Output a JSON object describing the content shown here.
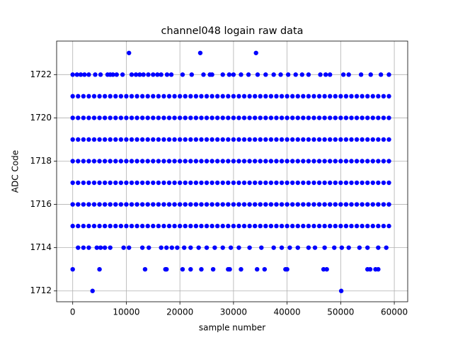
{
  "chart_data": {
    "type": "scatter",
    "title": "channel048 logain raw data",
    "xlabel": "sample number",
    "ylabel": "ADC Code",
    "xlim": [
      -3000,
      62500
    ],
    "ylim": [
      1711.5,
      1723.55
    ],
    "xticks": [
      0,
      10000,
      20000,
      30000,
      40000,
      50000,
      60000
    ],
    "yticks": [
      1712,
      1714,
      1716,
      1718,
      1720,
      1722
    ],
    "grid": true,
    "series": [
      {
        "color": "#0000ff",
        "x": [
          10500,
          23800,
          34200
        ],
        "values": [
          1723,
          1723,
          1723
        ]
      },
      {
        "color": "#0000ff",
        "x": [
          0,
          800,
          1500,
          2200,
          3000,
          4200,
          5200,
          6500,
          7000,
          7500,
          8200,
          9300,
          11000,
          11800,
          12500,
          13200,
          14100,
          15000,
          15800,
          16500,
          17600,
          18400,
          20500,
          22200,
          24400,
          25600,
          26000,
          28000,
          29200,
          30000,
          31400,
          32800,
          34500,
          36000,
          37500,
          38800,
          40200,
          41600,
          42800,
          44000,
          46200,
          47200,
          48000,
          50500,
          51500,
          53800,
          55600,
          57500,
          59000
        ],
        "values": [
          1722,
          1722,
          1722,
          1722,
          1722,
          1722,
          1722,
          1722,
          1722,
          1722,
          1722,
          1722,
          1722,
          1722,
          1722,
          1722,
          1722,
          1722,
          1722,
          1722,
          1722,
          1722,
          1722,
          1722,
          1722,
          1722,
          1722,
          1722,
          1722,
          1722,
          1722,
          1722,
          1722,
          1722,
          1722,
          1722,
          1722,
          1722,
          1722,
          1722,
          1722,
          1722,
          1722,
          1722,
          1722,
          1722,
          1722,
          1722,
          1722
        ]
      },
      {
        "color": "#0000ff",
        "x": [
          0,
          1000,
          2000,
          3000,
          4000,
          5000,
          6000,
          7000,
          8000,
          9000,
          10000,
          11000,
          12000,
          13000,
          14000,
          15000,
          16000,
          17000,
          18000,
          19000,
          20000,
          21000,
          22000,
          23000,
          24000,
          25000,
          26000,
          27000,
          28000,
          29000,
          30000,
          31000,
          32000,
          33000,
          34000,
          35000,
          36000,
          37000,
          38000,
          39000,
          40000,
          41000,
          42000,
          43000,
          44000,
          45000,
          46000,
          47000,
          48000,
          49000,
          50000,
          51000,
          52000,
          53000,
          54000,
          55000,
          56000,
          57000,
          58000,
          59000
        ],
        "values": [
          1721,
          1721,
          1721,
          1721,
          1721,
          1721,
          1721,
          1721,
          1721,
          1721,
          1721,
          1721,
          1721,
          1721,
          1721,
          1721,
          1721,
          1721,
          1721,
          1721,
          1721,
          1721,
          1721,
          1721,
          1721,
          1721,
          1721,
          1721,
          1721,
          1721,
          1721,
          1721,
          1721,
          1721,
          1721,
          1721,
          1721,
          1721,
          1721,
          1721,
          1721,
          1721,
          1721,
          1721,
          1721,
          1721,
          1721,
          1721,
          1721,
          1721,
          1721,
          1721,
          1721,
          1721,
          1721,
          1721,
          1721,
          1721,
          1721,
          1721
        ]
      },
      {
        "color": "#0000ff",
        "x": [
          0,
          1000,
          2000,
          3000,
          4000,
          5000,
          6000,
          7000,
          8000,
          9000,
          10000,
          11000,
          12000,
          13000,
          14000,
          15000,
          16000,
          17000,
          18000,
          19000,
          20000,
          21000,
          22000,
          23000,
          24000,
          25000,
          26000,
          27000,
          28000,
          29000,
          30000,
          31000,
          32000,
          33000,
          34000,
          35000,
          36000,
          37000,
          38000,
          39000,
          40000,
          41000,
          42000,
          43000,
          44000,
          45000,
          46000,
          47000,
          48000,
          49000,
          50000,
          51000,
          52000,
          53000,
          54000,
          55000,
          56000,
          57000,
          58000,
          59000
        ],
        "values": [
          1720,
          1720,
          1720,
          1720,
          1720,
          1720,
          1720,
          1720,
          1720,
          1720,
          1720,
          1720,
          1720,
          1720,
          1720,
          1720,
          1720,
          1720,
          1720,
          1720,
          1720,
          1720,
          1720,
          1720,
          1720,
          1720,
          1720,
          1720,
          1720,
          1720,
          1720,
          1720,
          1720,
          1720,
          1720,
          1720,
          1720,
          1720,
          1720,
          1720,
          1720,
          1720,
          1720,
          1720,
          1720,
          1720,
          1720,
          1720,
          1720,
          1720,
          1720,
          1720,
          1720,
          1720,
          1720,
          1720,
          1720,
          1720,
          1720,
          1720
        ]
      },
      {
        "color": "#0000ff",
        "x": [
          0,
          1000,
          2000,
          3000,
          4000,
          5000,
          6000,
          7000,
          8000,
          9000,
          10000,
          11000,
          12000,
          13000,
          14000,
          15000,
          16000,
          17000,
          18000,
          19000,
          20000,
          21000,
          22000,
          23000,
          24000,
          25000,
          26000,
          27000,
          28000,
          29000,
          30000,
          31000,
          32000,
          33000,
          34000,
          35000,
          36000,
          37000,
          38000,
          39000,
          40000,
          41000,
          42000,
          43000,
          44000,
          45000,
          46000,
          47000,
          48000,
          49000,
          50000,
          51000,
          52000,
          53000,
          54000,
          55000,
          56000,
          57000,
          58000,
          59000
        ],
        "values": [
          1719,
          1719,
          1719,
          1719,
          1719,
          1719,
          1719,
          1719,
          1719,
          1719,
          1719,
          1719,
          1719,
          1719,
          1719,
          1719,
          1719,
          1719,
          1719,
          1719,
          1719,
          1719,
          1719,
          1719,
          1719,
          1719,
          1719,
          1719,
          1719,
          1719,
          1719,
          1719,
          1719,
          1719,
          1719,
          1719,
          1719,
          1719,
          1719,
          1719,
          1719,
          1719,
          1719,
          1719,
          1719,
          1719,
          1719,
          1719,
          1719,
          1719,
          1719,
          1719,
          1719,
          1719,
          1719,
          1719,
          1719,
          1719,
          1719,
          1719
        ]
      },
      {
        "color": "#0000ff",
        "x": [
          0,
          1000,
          2000,
          3000,
          4000,
          5000,
          6000,
          7000,
          8000,
          9000,
          10000,
          11000,
          12000,
          13000,
          14000,
          15000,
          16000,
          17000,
          18000,
          19000,
          20000,
          21000,
          22000,
          23000,
          24000,
          25000,
          26000,
          27000,
          28000,
          29000,
          30000,
          31000,
          32000,
          33000,
          34000,
          35000,
          36000,
          37000,
          38000,
          39000,
          40000,
          41000,
          42000,
          43000,
          44000,
          45000,
          46000,
          47000,
          48000,
          49000,
          50000,
          51000,
          52000,
          53000,
          54000,
          55000,
          56000,
          57000,
          58000,
          59000
        ],
        "values": [
          1718,
          1718,
          1718,
          1718,
          1718,
          1718,
          1718,
          1718,
          1718,
          1718,
          1718,
          1718,
          1718,
          1718,
          1718,
          1718,
          1718,
          1718,
          1718,
          1718,
          1718,
          1718,
          1718,
          1718,
          1718,
          1718,
          1718,
          1718,
          1718,
          1718,
          1718,
          1718,
          1718,
          1718,
          1718,
          1718,
          1718,
          1718,
          1718,
          1718,
          1718,
          1718,
          1718,
          1718,
          1718,
          1718,
          1718,
          1718,
          1718,
          1718,
          1718,
          1718,
          1718,
          1718,
          1718,
          1718,
          1718,
          1718,
          1718,
          1718
        ]
      },
      {
        "color": "#0000ff",
        "x": [
          0,
          1000,
          2000,
          3000,
          4000,
          5000,
          6000,
          7000,
          8000,
          9000,
          10000,
          11000,
          12000,
          13000,
          14000,
          15000,
          16000,
          17000,
          18000,
          19000,
          20000,
          21000,
          22000,
          23000,
          24000,
          25000,
          26000,
          27000,
          28000,
          29000,
          30000,
          31000,
          32000,
          33000,
          34000,
          35000,
          36000,
          37000,
          38000,
          39000,
          40000,
          41000,
          42000,
          43000,
          44000,
          45000,
          46000,
          47000,
          48000,
          49000,
          50000,
          51000,
          52000,
          53000,
          54000,
          55000,
          56000,
          57000,
          58000,
          59000
        ],
        "values": [
          1717,
          1717,
          1717,
          1717,
          1717,
          1717,
          1717,
          1717,
          1717,
          1717,
          1717,
          1717,
          1717,
          1717,
          1717,
          1717,
          1717,
          1717,
          1717,
          1717,
          1717,
          1717,
          1717,
          1717,
          1717,
          1717,
          1717,
          1717,
          1717,
          1717,
          1717,
          1717,
          1717,
          1717,
          1717,
          1717,
          1717,
          1717,
          1717,
          1717,
          1717,
          1717,
          1717,
          1717,
          1717,
          1717,
          1717,
          1717,
          1717,
          1717,
          1717,
          1717,
          1717,
          1717,
          1717,
          1717,
          1717,
          1717,
          1717,
          1717
        ]
      },
      {
        "color": "#0000ff",
        "x": [
          0,
          1000,
          2000,
          3000,
          4000,
          5000,
          6000,
          7000,
          8000,
          9000,
          10000,
          11000,
          12000,
          13000,
          14000,
          15000,
          16000,
          17000,
          18000,
          19000,
          20000,
          21000,
          22000,
          23000,
          24000,
          25000,
          26000,
          27000,
          28000,
          29000,
          30000,
          31000,
          32000,
          33000,
          34000,
          35000,
          36000,
          37000,
          38000,
          39000,
          40000,
          41000,
          42000,
          43000,
          44000,
          45000,
          46000,
          47000,
          48000,
          49000,
          50000,
          51000,
          52000,
          53000,
          54000,
          55000,
          56000,
          57000,
          58000,
          59000
        ],
        "values": [
          1716,
          1716,
          1716,
          1716,
          1716,
          1716,
          1716,
          1716,
          1716,
          1716,
          1716,
          1716,
          1716,
          1716,
          1716,
          1716,
          1716,
          1716,
          1716,
          1716,
          1716,
          1716,
          1716,
          1716,
          1716,
          1716,
          1716,
          1716,
          1716,
          1716,
          1716,
          1716,
          1716,
          1716,
          1716,
          1716,
          1716,
          1716,
          1716,
          1716,
          1716,
          1716,
          1716,
          1716,
          1716,
          1716,
          1716,
          1716,
          1716,
          1716,
          1716,
          1716,
          1716,
          1716,
          1716,
          1716,
          1716,
          1716,
          1716,
          1716
        ]
      },
      {
        "color": "#0000ff",
        "x": [
          0,
          1000,
          2000,
          3000,
          4000,
          5000,
          6000,
          7000,
          8000,
          9000,
          10000,
          11000,
          12000,
          13000,
          14000,
          15000,
          16000,
          17000,
          18000,
          19000,
          20000,
          21000,
          22000,
          23000,
          24000,
          25000,
          26000,
          27000,
          28000,
          29000,
          30000,
          31000,
          32000,
          33000,
          34000,
          35000,
          36000,
          37000,
          38000,
          39000,
          40000,
          41000,
          42000,
          43000,
          44000,
          45000,
          46000,
          47000,
          48000,
          49000,
          50000,
          51000,
          52000,
          53000,
          54000,
          55000,
          56000,
          57000,
          58000,
          59000
        ],
        "values": [
          1715,
          1715,
          1715,
          1715,
          1715,
          1715,
          1715,
          1715,
          1715,
          1715,
          1715,
          1715,
          1715,
          1715,
          1715,
          1715,
          1715,
          1715,
          1715,
          1715,
          1715,
          1715,
          1715,
          1715,
          1715,
          1715,
          1715,
          1715,
          1715,
          1715,
          1715,
          1715,
          1715,
          1715,
          1715,
          1715,
          1715,
          1715,
          1715,
          1715,
          1715,
          1715,
          1715,
          1715,
          1715,
          1715,
          1715,
          1715,
          1715,
          1715,
          1715,
          1715,
          1715,
          1715,
          1715,
          1715,
          1715,
          1715,
          1715,
          1715
        ]
      },
      {
        "color": "#0000ff",
        "x": [
          1000,
          2000,
          3000,
          4500,
          5200,
          6000,
          7000,
          9500,
          10500,
          13000,
          14200,
          16500,
          17500,
          18500,
          19500,
          20800,
          22000,
          23500,
          25000,
          26500,
          28000,
          29500,
          31000,
          33000,
          35200,
          37500,
          39000,
          40500,
          42000,
          44000,
          45200,
          47000,
          48800,
          50200,
          51500,
          53500,
          55000,
          57000,
          58500
        ],
        "values": [
          1714,
          1714,
          1714,
          1714,
          1714,
          1714,
          1714,
          1714,
          1714,
          1714,
          1714,
          1714,
          1714,
          1714,
          1714,
          1714,
          1714,
          1714,
          1714,
          1714,
          1714,
          1714,
          1714,
          1714,
          1714,
          1714,
          1714,
          1714,
          1714,
          1714,
          1714,
          1714,
          1714,
          1714,
          1714,
          1714,
          1714,
          1714,
          1714
        ]
      },
      {
        "color": "#0000ff",
        "x": [
          0,
          5000,
          13500,
          17300,
          17500,
          20500,
          22000,
          24000,
          26200,
          29000,
          29300,
          31400,
          34400,
          35800,
          39700,
          40000,
          46800,
          47400,
          55000,
          55500,
          56500,
          57000
        ],
        "values": [
          1713,
          1713,
          1713,
          1713,
          1713,
          1713,
          1713,
          1713,
          1713,
          1713,
          1713,
          1713,
          1713,
          1713,
          1713,
          1713,
          1713,
          1713,
          1713,
          1713,
          1713,
          1713
        ]
      },
      {
        "color": "#0000ff",
        "x": [
          3700,
          50100
        ],
        "values": [
          1712,
          1712
        ]
      }
    ]
  }
}
